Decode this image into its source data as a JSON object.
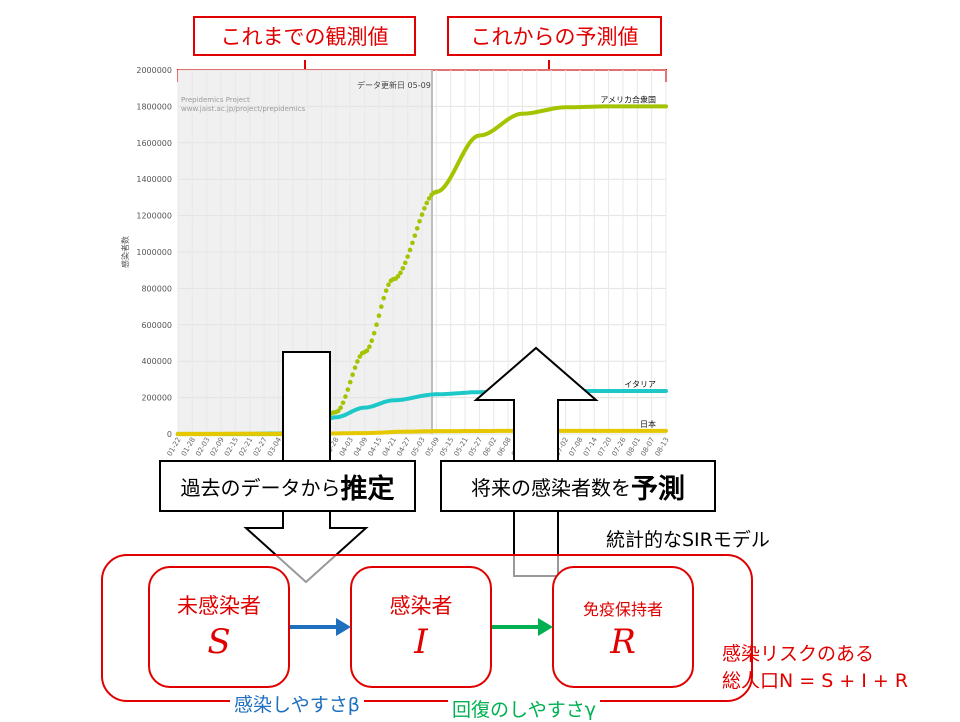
{
  "header": {
    "observed_label": "これまでの観測値",
    "forecast_label": "これからの予測値"
  },
  "chart_data": {
    "type": "line",
    "ylabel": "感染者数",
    "ylim": [
      0,
      2000000
    ],
    "y_ticks": [
      0,
      200000,
      400000,
      600000,
      800000,
      1000000,
      1200000,
      1400000,
      1600000,
      1800000,
      2000000
    ],
    "x_ticks": [
      "01-22",
      "01-28",
      "02-03",
      "02-09",
      "02-15",
      "02-21",
      "02-27",
      "03-04",
      "03-10",
      "03-16",
      "03-22",
      "03-28",
      "04-03",
      "04-09",
      "04-15",
      "04-21",
      "04-27",
      "05-03",
      "05-09",
      "05-15",
      "05-21",
      "05-27",
      "06-02",
      "06-08",
      "06-14",
      "06-20",
      "06-26",
      "07-02",
      "07-08",
      "07-14",
      "07-20",
      "07-26",
      "08-01",
      "08-07",
      "08-13"
    ],
    "watermark": [
      "Prepidemics Project",
      "www.jaist.ac.jp/project/prepidemics"
    ],
    "update_note": "データ更新日 05-09",
    "update_date": "05-09",
    "series": [
      {
        "name": "アメリカ合衆国",
        "color": "#a3c400",
        "x": [
          "01-22",
          "03-04",
          "03-16",
          "03-28",
          "04-09",
          "04-21",
          "05-09",
          "05-27",
          "06-14",
          "07-02",
          "07-20",
          "08-13"
        ],
        "values": [
          0,
          100,
          20000,
          120000,
          450000,
          850000,
          1330000,
          1640000,
          1760000,
          1795000,
          1800000,
          1800000
        ]
      },
      {
        "name": "イタリア",
        "color": "#1ec8c8",
        "x": [
          "01-22",
          "02-21",
          "03-04",
          "03-16",
          "03-28",
          "04-09",
          "04-21",
          "05-09",
          "05-27",
          "06-14",
          "07-02",
          "07-20",
          "08-13"
        ],
        "values": [
          0,
          0,
          3000,
          28000,
          92000,
          145000,
          185000,
          218000,
          230000,
          234000,
          236000,
          236000,
          236000
        ]
      },
      {
        "name": "日本",
        "color": "#e6c800",
        "x": [
          "01-22",
          "03-16",
          "04-09",
          "04-27",
          "05-09",
          "06-14",
          "08-13"
        ],
        "values": [
          0,
          1000,
          5000,
          13000,
          16000,
          17000,
          17000
        ]
      }
    ]
  },
  "callouts": {
    "estimate_prefix": "過去のデータから",
    "estimate_strong": "推定",
    "predict_prefix": "将来の感染者数を",
    "predict_strong": "予測"
  },
  "model": {
    "title": "統計的なSIRモデル",
    "nodes": [
      {
        "label": "未感染者",
        "symbol": "S"
      },
      {
        "label": "感染者",
        "symbol": "I"
      },
      {
        "label": "免疫保持者",
        "symbol": "R"
      }
    ],
    "rate_beta": "感染しやすさβ",
    "rate_gamma": "回復のしやすさγ",
    "population_line1": "感染リスクのある",
    "population_line2": "総人口N = S + I + R",
    "colors": {
      "beta_arrow": "#1f6fbf",
      "gamma_arrow": "#00b050",
      "accent": "#e00000"
    }
  }
}
